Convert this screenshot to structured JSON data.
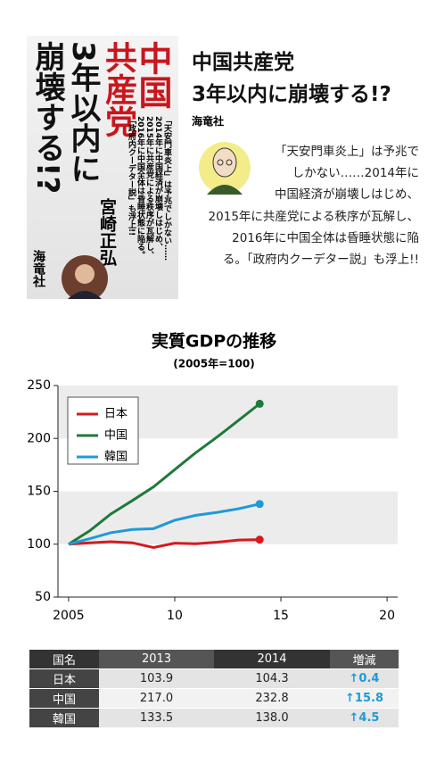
{
  "book": {
    "cover": {
      "title_columns": [
        "中国",
        "共産党",
        "3年以内に",
        "崩壊する!?"
      ],
      "author": "宮崎正弘",
      "publisher": "海竜社",
      "blurb_columns": [
        "「天安門車炎上」は予兆でしかない……",
        "2014年に中国経済が崩壊しはじめ、",
        "2015年に共産党による秩序が瓦解し、",
        "2016年に中国全体は昏睡状態に陥る。",
        "「政府内クーデター説」も浮上!!"
      ]
    },
    "title_lines": [
      "中国共産党",
      "3年以内に崩壊する!?"
    ],
    "publisher": "海竜社",
    "description_lines": [
      "「天安門車炎上」は予兆で",
      "しかない……2014年に",
      "中国経済が崩壊しはじめ、",
      "2015年に共産党による秩序が瓦解し、",
      "2016年に中国全体は昏睡状態に陥",
      "る。「政府内クーデター説」も浮上!!"
    ]
  },
  "chart_data": {
    "type": "line",
    "title": "実質GDPの推移",
    "subtitle": "(2005年=100)",
    "x": [
      2005,
      2006,
      2007,
      2008,
      2009,
      2010,
      2011,
      2012,
      2013,
      2014
    ],
    "series": [
      {
        "name": "日本",
        "color": "#d7191f",
        "values": [
          100,
          101.3,
          102.3,
          101.3,
          96.9,
          100.9,
          100.4,
          101.9,
          103.9,
          104.3
        ]
      },
      {
        "name": "中国",
        "color": "#1e7a3a",
        "values": [
          100,
          112.7,
          128.7,
          141.2,
          154.2,
          170.5,
          186.7,
          201.4,
          217.0,
          232.8
        ]
      },
      {
        "name": "韓国",
        "color": "#1e9ad6",
        "values": [
          100,
          105.2,
          110.9,
          113.9,
          114.7,
          122.6,
          127.3,
          130.1,
          133.5,
          138.0
        ]
      }
    ],
    "xlim": [
      2004.5,
      2020.5
    ],
    "xticks": [
      2005,
      {
        "value": 2010,
        "label": "10"
      },
      {
        "value": 2015,
        "label": "15"
      },
      {
        "value": 2020,
        "label": "20"
      }
    ],
    "ylim": [
      50,
      250
    ],
    "yticks": [
      50,
      100,
      150,
      200,
      250
    ],
    "legend": "upper left",
    "grid": "bands"
  },
  "table": {
    "header": [
      "国名",
      "2013",
      "2014",
      "増減"
    ],
    "rows": [
      [
        "日本",
        "103.9",
        "104.3",
        "↑0.4"
      ],
      [
        "中国",
        "217.0",
        "232.8",
        "↑15.8"
      ],
      [
        "韓国",
        "133.5",
        "138.0",
        "↑4.5"
      ]
    ]
  }
}
